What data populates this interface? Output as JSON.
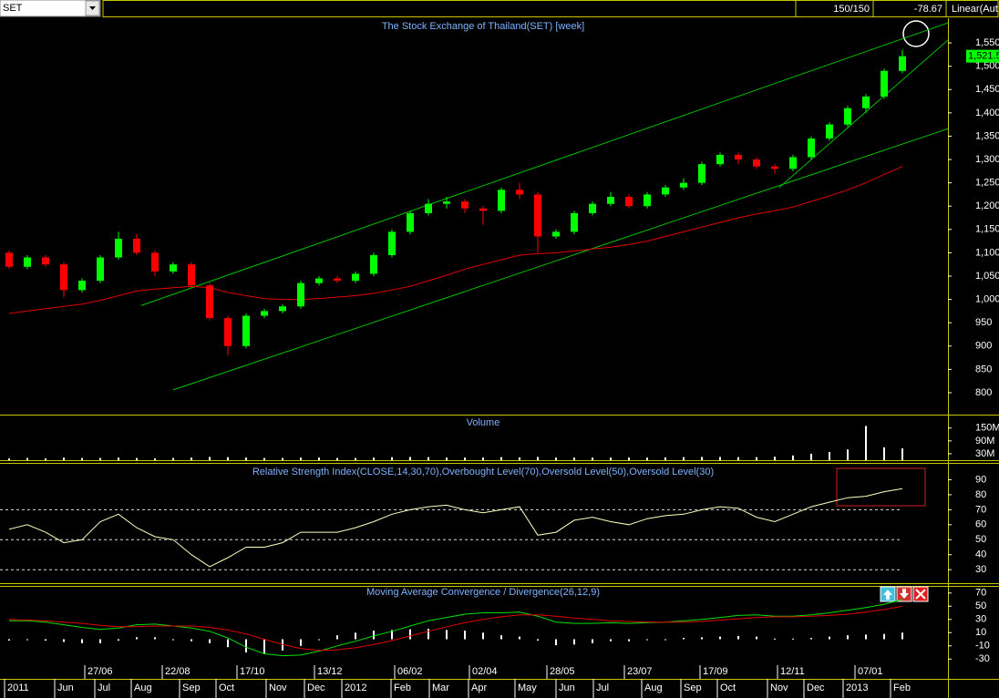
{
  "header": {
    "symbol": "SET",
    "count": "150/150",
    "change": -78.67,
    "scale": "Linear(Aut"
  },
  "chart_data": [
    {
      "type": "candlestick",
      "title": "The Stock Exchange of Thailand(SET) [week]",
      "x": [
        0,
        2,
        4,
        6,
        8,
        10,
        12,
        14,
        16,
        18,
        20,
        22,
        24,
        26,
        28,
        30,
        32,
        34,
        36,
        38,
        40,
        42,
        44,
        46,
        48,
        50,
        52,
        54,
        56,
        58,
        60,
        62,
        64,
        66,
        68,
        70,
        72,
        74,
        76,
        78,
        80,
        82,
        84,
        86,
        88,
        90,
        92,
        94,
        96,
        98
      ],
      "open": [
        1100,
        1070,
        1090,
        1075,
        1020,
        1040,
        1090,
        1130,
        1100,
        1060,
        1075,
        1030,
        960,
        900,
        965,
        975,
        985,
        1035,
        1045,
        1040,
        1055,
        1095,
        1145,
        1185,
        1205,
        1210,
        1195,
        1190,
        1235,
        1225,
        1135,
        1145,
        1185,
        1205,
        1220,
        1200,
        1225,
        1240,
        1250,
        1290,
        1310,
        1300,
        1285,
        1280,
        1305,
        1345,
        1375,
        1410,
        1435,
        1490
      ],
      "high": [
        1105,
        1095,
        1095,
        1080,
        1045,
        1095,
        1145,
        1140,
        1105,
        1080,
        1080,
        1035,
        965,
        970,
        980,
        990,
        1040,
        1050,
        1050,
        1060,
        1100,
        1150,
        1190,
        1215,
        1220,
        1215,
        1200,
        1240,
        1250,
        1230,
        1150,
        1190,
        1210,
        1230,
        1225,
        1230,
        1245,
        1260,
        1295,
        1315,
        1315,
        1305,
        1290,
        1310,
        1350,
        1380,
        1415,
        1440,
        1495,
        1535
      ],
      "low": [
        1065,
        1065,
        1070,
        1005,
        1015,
        1035,
        1085,
        1095,
        1050,
        1055,
        1025,
        955,
        880,
        895,
        960,
        970,
        980,
        1030,
        1035,
        1035,
        1050,
        1090,
        1140,
        1180,
        1195,
        1185,
        1160,
        1185,
        1215,
        1100,
        1130,
        1140,
        1180,
        1200,
        1195,
        1195,
        1220,
        1235,
        1245,
        1285,
        1290,
        1280,
        1270,
        1275,
        1300,
        1340,
        1370,
        1400,
        1430,
        1485
      ],
      "close": [
        1070,
        1090,
        1075,
        1020,
        1040,
        1090,
        1130,
        1100,
        1060,
        1075,
        1030,
        960,
        900,
        965,
        975,
        985,
        1035,
        1045,
        1040,
        1055,
        1095,
        1145,
        1185,
        1205,
        1210,
        1195,
        1190,
        1235,
        1225,
        1135,
        1145,
        1185,
        1205,
        1220,
        1200,
        1225,
        1240,
        1250,
        1290,
        1310,
        1300,
        1285,
        1280,
        1305,
        1345,
        1375,
        1410,
        1435,
        1490,
        1521.5
      ],
      "up_color": "#00ff00",
      "down_color": "#ff0000",
      "lines": [
        {
          "color": "#e00000",
          "values": [
            970,
            975,
            980,
            985,
            990,
            998,
            1008,
            1018,
            1022,
            1025,
            1028,
            1025,
            1015,
            1008,
            1002,
            1000,
            1000,
            1002,
            1005,
            1008,
            1013,
            1020,
            1028,
            1040,
            1052,
            1065,
            1075,
            1085,
            1095,
            1098,
            1100,
            1104,
            1108,
            1112,
            1118,
            1125,
            1135,
            1145,
            1155,
            1165,
            1175,
            1183,
            1190,
            1198,
            1210,
            1222,
            1235,
            1250,
            1268,
            1285
          ]
        }
      ],
      "trendlines": [
        {
          "color": "#00c000",
          "x": [
            14.5,
            103
          ],
          "y": [
            987,
            1593
          ]
        },
        {
          "color": "#00c000",
          "x": [
            18,
            103
          ],
          "y": [
            806,
            1366
          ]
        },
        {
          "color": "#00c000",
          "x": [
            84.5,
            103
          ],
          "y": [
            1240,
            1556
          ]
        }
      ],
      "last_label": "1,521.5",
      "xlim": [
        -1,
        103
      ],
      "ylim": [
        753,
        1599
      ],
      "yticks": [
        800,
        850,
        900,
        950,
        {
          "value": 1000,
          "label": "1,000"
        },
        {
          "value": 1050,
          "label": "1,050"
        },
        {
          "value": 1100,
          "label": "1,100"
        },
        {
          "value": 1150,
          "label": "1,150"
        },
        {
          "value": 1200,
          "label": "1,200"
        },
        {
          "value": 1250,
          "label": "1,250"
        },
        {
          "value": 1300,
          "label": "1,300"
        },
        {
          "value": 1350,
          "label": "1,350"
        },
        {
          "value": 1400,
          "label": "1,400"
        },
        {
          "value": 1450,
          "label": "1,450"
        },
        {
          "value": 1500,
          "label": "1,500"
        },
        {
          "value": 1550,
          "label": "1,550"
        }
      ],
      "date_ticks": [
        {
          "value": 8.3,
          "label": "27/06"
        },
        {
          "value": 16.8,
          "label": "22/08"
        },
        {
          "value": 25,
          "label": "17/10"
        },
        {
          "value": 33.5,
          "label": "13/12"
        },
        {
          "value": 42.3,
          "label": "06/02"
        },
        {
          "value": 50.5,
          "label": "02/04"
        },
        {
          "value": 59,
          "label": "28/05"
        },
        {
          "value": 67.5,
          "label": "23/07"
        },
        {
          "value": 75.8,
          "label": "17/09"
        },
        {
          "value": 84.3,
          "label": "12/11"
        },
        {
          "value": 92.8,
          "label": "07/01"
        }
      ],
      "xticks": [
        {
          "value": -0.2,
          "label": "2011"
        },
        {
          "value": 5.3,
          "label": "Jun"
        },
        {
          "value": 9.7,
          "label": "Jul"
        },
        {
          "value": 13.7,
          "label": "Aug"
        },
        {
          "value": 19,
          "label": "Sep"
        },
        {
          "value": 23,
          "label": "Oct"
        },
        {
          "value": 28.5,
          "label": "Nov"
        },
        {
          "value": 32.7,
          "label": "Dec"
        },
        {
          "value": 36.8,
          "label": "2012"
        },
        {
          "value": 42.2,
          "label": "Feb"
        },
        {
          "value": 46.4,
          "label": "Mar"
        },
        {
          "value": 50.7,
          "label": "Apr"
        },
        {
          "value": 55.8,
          "label": "May"
        },
        {
          "value": 60.3,
          "label": "Jun"
        },
        {
          "value": 64.4,
          "label": "Jul"
        },
        {
          "value": 69.7,
          "label": "Aug"
        },
        {
          "value": 74,
          "label": "Sep"
        },
        {
          "value": 78,
          "label": "Oct"
        },
        {
          "value": 83.5,
          "label": "Nov"
        },
        {
          "value": 87.5,
          "label": "Dec"
        },
        {
          "value": 91.8,
          "label": "2013"
        },
        {
          "value": 97,
          "label": "Feb"
        }
      ]
    },
    {
      "type": "bar",
      "title": "Volume",
      "color": "#ffffff",
      "x": [
        0,
        2,
        4,
        6,
        8,
        10,
        12,
        14,
        16,
        18,
        20,
        22,
        24,
        26,
        28,
        30,
        32,
        34,
        36,
        38,
        40,
        42,
        44,
        46,
        48,
        50,
        52,
        54,
        56,
        58,
        60,
        62,
        64,
        66,
        68,
        70,
        72,
        74,
        76,
        78,
        80,
        82,
        84,
        86,
        88,
        90,
        92,
        94,
        96,
        98
      ],
      "values": [
        8000000,
        10000000,
        8000000,
        12000000,
        10000000,
        10000000,
        12000000,
        10000000,
        8000000,
        10000000,
        12000000,
        15000000,
        14000000,
        12000000,
        10000000,
        10000000,
        12000000,
        12000000,
        10000000,
        10000000,
        12000000,
        14000000,
        15000000,
        14000000,
        12000000,
        12000000,
        12000000,
        14000000,
        13000000,
        15000000,
        12000000,
        12000000,
        12000000,
        12000000,
        12000000,
        12000000,
        13000000,
        14000000,
        15000000,
        15000000,
        14000000,
        14000000,
        16000000,
        22000000,
        30000000,
        38000000,
        50000000,
        160000000,
        60000000,
        55000000
      ],
      "xlim": [
        -1,
        103
      ],
      "ylim": [
        0,
        200000000
      ],
      "yticks": [
        {
          "value": 30000000,
          "label": "30M"
        },
        {
          "value": 90000000,
          "label": "90M"
        },
        {
          "value": 150000000,
          "label": "150M"
        }
      ]
    },
    {
      "type": "line",
      "title": "Relative Strength Index(CLOSE,14,30,70),Overbought Level(70),Oversold Level(50),Oversold Level(30)",
      "x": [
        0,
        2,
        4,
        6,
        8,
        10,
        12,
        14,
        16,
        18,
        20,
        22,
        24,
        26,
        28,
        30,
        32,
        34,
        36,
        38,
        40,
        42,
        44,
        46,
        48,
        50,
        52,
        54,
        56,
        58,
        60,
        62,
        64,
        66,
        68,
        70,
        72,
        74,
        76,
        78,
        80,
        82,
        84,
        86,
        88,
        90,
        92,
        94,
        96,
        98
      ],
      "series": [
        {
          "color": "#ffffc0",
          "values": [
            57,
            60,
            55,
            48,
            50,
            62,
            67,
            58,
            52,
            50,
            40,
            32,
            38,
            45,
            45,
            48,
            55,
            55,
            55,
            58,
            62,
            67,
            70,
            72,
            73,
            70,
            68,
            70,
            72,
            53,
            55,
            63,
            65,
            62,
            60,
            64,
            66,
            67,
            70,
            72,
            71,
            65,
            62,
            67,
            72,
            75,
            78,
            79,
            82,
            84
          ]
        }
      ],
      "levels": [
        70,
        50,
        30
      ],
      "xlim": [
        -1,
        103
      ],
      "ylim": [
        21,
        100
      ],
      "yticks": [
        30,
        40,
        50,
        60,
        70,
        80,
        90
      ]
    },
    {
      "type": "line",
      "title": "Moving Average Convergence / Divergence(26,12,9)",
      "x": [
        0,
        2,
        4,
        6,
        8,
        10,
        12,
        14,
        16,
        18,
        20,
        22,
        24,
        26,
        28,
        30,
        32,
        34,
        36,
        38,
        40,
        42,
        44,
        46,
        48,
        50,
        52,
        54,
        56,
        58,
        60,
        62,
        64,
        66,
        68,
        70,
        72,
        74,
        76,
        78,
        80,
        82,
        84,
        86,
        88,
        90,
        92,
        94,
        96,
        98
      ],
      "series": [
        {
          "color": "#00e000",
          "values": [
            28,
            28,
            26,
            22,
            18,
            15,
            17,
            22,
            23,
            20,
            17,
            12,
            2,
            -12,
            -22,
            -25,
            -24,
            -18,
            -10,
            -3,
            5,
            12,
            20,
            28,
            33,
            38,
            40,
            40,
            41,
            35,
            26,
            24,
            24,
            25,
            24,
            25,
            26,
            28,
            30,
            33,
            36,
            37,
            35,
            35,
            37,
            40,
            44,
            48,
            53,
            60
          ]
        },
        {
          "color": "#e00000",
          "values": [
            30,
            29,
            28,
            26,
            24,
            21,
            19,
            19,
            20,
            20,
            20,
            18,
            14,
            8,
            0,
            -8,
            -14,
            -17,
            -16,
            -13,
            -8,
            -2,
            5,
            12,
            19,
            25,
            30,
            34,
            37,
            37,
            35,
            32,
            30,
            28,
            27,
            26,
            26,
            26,
            27,
            29,
            31,
            33,
            34,
            34,
            35,
            36,
            38,
            41,
            45,
            50
          ]
        }
      ],
      "histogram": [
        -2,
        -1,
        -2,
        -4,
        -6,
        -6,
        -2,
        3,
        3,
        0,
        -3,
        -6,
        -12,
        -20,
        -22,
        -17,
        -10,
        -1,
        6,
        10,
        13,
        14,
        15,
        16,
        14,
        13,
        10,
        6,
        4,
        -2,
        -9,
        -8,
        -6,
        -3,
        -3,
        -1,
        0,
        2,
        3,
        4,
        5,
        4,
        1,
        1,
        2,
        4,
        6,
        7,
        8,
        10
      ],
      "xlim": [
        -1,
        103
      ],
      "ylim": [
        -60,
        78
      ],
      "yticks": [
        70,
        50,
        30,
        10,
        -10,
        -30
      ]
    }
  ]
}
